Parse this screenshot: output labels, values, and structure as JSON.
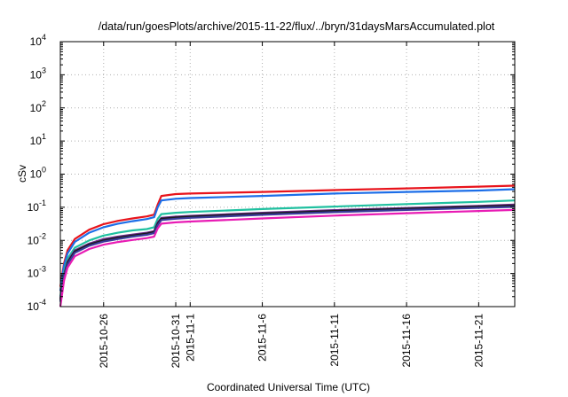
{
  "chart_data": {
    "type": "line",
    "title": "/data/run/goesPlots/archive/2015-11-22/flux/../bryn/31daysMarsAccumulated.plot",
    "xlabel": "Coordinated Universal Time (UTC)",
    "ylabel": "cSv",
    "yscale": "log",
    "ylim": [
      0.0001,
      10000
    ],
    "xlim": [
      "2015-10-23",
      "2015-11-23 12:00"
    ],
    "grid": true,
    "legend": "none",
    "y_tick_labels": [
      {
        "value": 0.0001,
        "base": "10",
        "exp": "-4"
      },
      {
        "value": 0.001,
        "base": "10",
        "exp": "-3"
      },
      {
        "value": 0.01,
        "base": "10",
        "exp": "-2"
      },
      {
        "value": 0.1,
        "base": "10",
        "exp": "-1"
      },
      {
        "value": 1,
        "base": "10",
        "exp": "0"
      },
      {
        "value": 10,
        "base": "10",
        "exp": "1"
      },
      {
        "value": 100,
        "base": "10",
        "exp": "2"
      },
      {
        "value": 1000,
        "base": "10",
        "exp": "3"
      },
      {
        "value": 10000,
        "base": "10",
        "exp": "4"
      }
    ],
    "x_tick_labels": [
      {
        "date": "2015-10-26",
        "label": "2015-10-26"
      },
      {
        "date": "2015-10-31",
        "label": "2015-10-31"
      },
      {
        "date": "2015-11-01",
        "label": "2015-11-1"
      },
      {
        "date": "2015-11-06",
        "label": "2015-11-6"
      },
      {
        "date": "2015-11-11",
        "label": "2015-11-11"
      },
      {
        "date": "2015-11-16",
        "label": "2015-11-16"
      },
      {
        "date": "2015-11-21",
        "label": "2015-11-21"
      }
    ],
    "series": [
      {
        "color": "#e8141c",
        "x": [
          "2015-10-23",
          "2015-10-23 06:00",
          "2015-10-23 12:00",
          "2015-10-24",
          "2015-10-25",
          "2015-10-26",
          "2015-10-27",
          "2015-10-28",
          "2015-10-29",
          "2015-10-29 12:00",
          "2015-10-29 18:00",
          "2015-10-30",
          "2015-10-31",
          "2015-11-01",
          "2015-11-06",
          "2015-11-11",
          "2015-11-16",
          "2015-11-21",
          "2015-11-23 12:00"
        ],
        "values": [
          0.0004,
          0.002,
          0.005,
          0.011,
          0.021,
          0.031,
          0.039,
          0.046,
          0.053,
          0.06,
          0.12,
          0.22,
          0.25,
          0.26,
          0.29,
          0.33,
          0.37,
          0.42,
          0.45
        ]
      },
      {
        "color": "#1c6ee8",
        "x": [
          "2015-10-23",
          "2015-10-23 06:00",
          "2015-10-23 12:00",
          "2015-10-24",
          "2015-10-25",
          "2015-10-26",
          "2015-10-27",
          "2015-10-28",
          "2015-10-29",
          "2015-10-29 12:00",
          "2015-10-29 18:00",
          "2015-10-30",
          "2015-10-31",
          "2015-11-01",
          "2015-11-06",
          "2015-11-11",
          "2015-11-16",
          "2015-11-21",
          "2015-11-23 12:00"
        ],
        "values": [
          0.0003,
          0.0017,
          0.004,
          0.009,
          0.017,
          0.025,
          0.032,
          0.038,
          0.044,
          0.05,
          0.1,
          0.16,
          0.18,
          0.19,
          0.22,
          0.26,
          0.29,
          0.32,
          0.35
        ]
      },
      {
        "color": "#20c0a0",
        "x": [
          "2015-10-23",
          "2015-10-23 06:00",
          "2015-10-23 12:00",
          "2015-10-24",
          "2015-10-25",
          "2015-10-26",
          "2015-10-27",
          "2015-10-28",
          "2015-10-29",
          "2015-10-29 12:00",
          "2015-10-29 18:00",
          "2015-10-30",
          "2015-10-31",
          "2015-11-01",
          "2015-11-06",
          "2015-11-11",
          "2015-11-16",
          "2015-11-21",
          "2015-11-23 12:00"
        ],
        "values": [
          0.0002,
          0.0011,
          0.0028,
          0.006,
          0.01,
          0.014,
          0.017,
          0.02,
          0.022,
          0.025,
          0.045,
          0.062,
          0.068,
          0.072,
          0.088,
          0.105,
          0.125,
          0.145,
          0.16
        ]
      },
      {
        "color": "#6a2a88",
        "x": [
          "2015-10-23",
          "2015-10-23 06:00",
          "2015-10-23 12:00",
          "2015-10-24",
          "2015-10-25",
          "2015-10-26",
          "2015-10-27",
          "2015-10-28",
          "2015-10-29",
          "2015-10-29 12:00",
          "2015-10-29 18:00",
          "2015-10-30",
          "2015-10-31",
          "2015-11-01",
          "2015-11-06",
          "2015-11-11",
          "2015-11-16",
          "2015-11-21",
          "2015-11-23 12:00"
        ],
        "values": [
          0.00018,
          0.0009,
          0.0023,
          0.005,
          0.008,
          0.011,
          0.013,
          0.015,
          0.017,
          0.019,
          0.035,
          0.048,
          0.052,
          0.055,
          0.068,
          0.082,
          0.095,
          0.11,
          0.12
        ]
      },
      {
        "color": "#1a1a1a",
        "x": [
          "2015-10-23",
          "2015-10-23 06:00",
          "2015-10-23 12:00",
          "2015-10-24",
          "2015-10-25",
          "2015-10-26",
          "2015-10-27",
          "2015-10-28",
          "2015-10-29",
          "2015-10-29 12:00",
          "2015-10-29 18:00",
          "2015-10-30",
          "2015-10-31",
          "2015-11-01",
          "2015-11-06",
          "2015-11-11",
          "2015-11-16",
          "2015-11-21",
          "2015-11-23 12:00"
        ],
        "values": [
          0.00016,
          0.00085,
          0.0021,
          0.0046,
          0.0075,
          0.01,
          0.012,
          0.014,
          0.016,
          0.018,
          0.032,
          0.045,
          0.049,
          0.052,
          0.064,
          0.077,
          0.09,
          0.104,
          0.112
        ]
      },
      {
        "color": "#3a3a9a",
        "x": [
          "2015-10-23",
          "2015-10-23 06:00",
          "2015-10-23 12:00",
          "2015-10-24",
          "2015-10-25",
          "2015-10-26",
          "2015-10-27",
          "2015-10-28",
          "2015-10-29",
          "2015-10-29 12:00",
          "2015-10-29 18:00",
          "2015-10-30",
          "2015-10-31",
          "2015-11-01",
          "2015-11-06",
          "2015-11-11",
          "2015-11-16",
          "2015-11-21",
          "2015-11-23 12:00"
        ],
        "values": [
          0.00014,
          0.0008,
          0.0019,
          0.0042,
          0.0069,
          0.0092,
          0.011,
          0.013,
          0.0148,
          0.0165,
          0.029,
          0.041,
          0.045,
          0.048,
          0.059,
          0.071,
          0.083,
          0.096,
          0.103
        ]
      },
      {
        "color": "#e81cb4",
        "x": [
          "2015-10-23",
          "2015-10-23 06:00",
          "2015-10-23 12:00",
          "2015-10-24",
          "2015-10-25",
          "2015-10-26",
          "2015-10-27",
          "2015-10-28",
          "2015-10-29",
          "2015-10-29 12:00",
          "2015-10-29 18:00",
          "2015-10-30",
          "2015-10-31",
          "2015-11-01",
          "2015-11-06",
          "2015-11-11",
          "2015-11-16",
          "2015-11-21",
          "2015-11-23 12:00"
        ],
        "values": [
          0.0001,
          0.0006,
          0.0015,
          0.0033,
          0.0055,
          0.0074,
          0.0089,
          0.0103,
          0.0117,
          0.013,
          0.023,
          0.032,
          0.035,
          0.037,
          0.046,
          0.056,
          0.066,
          0.077,
          0.083
        ]
      }
    ]
  }
}
